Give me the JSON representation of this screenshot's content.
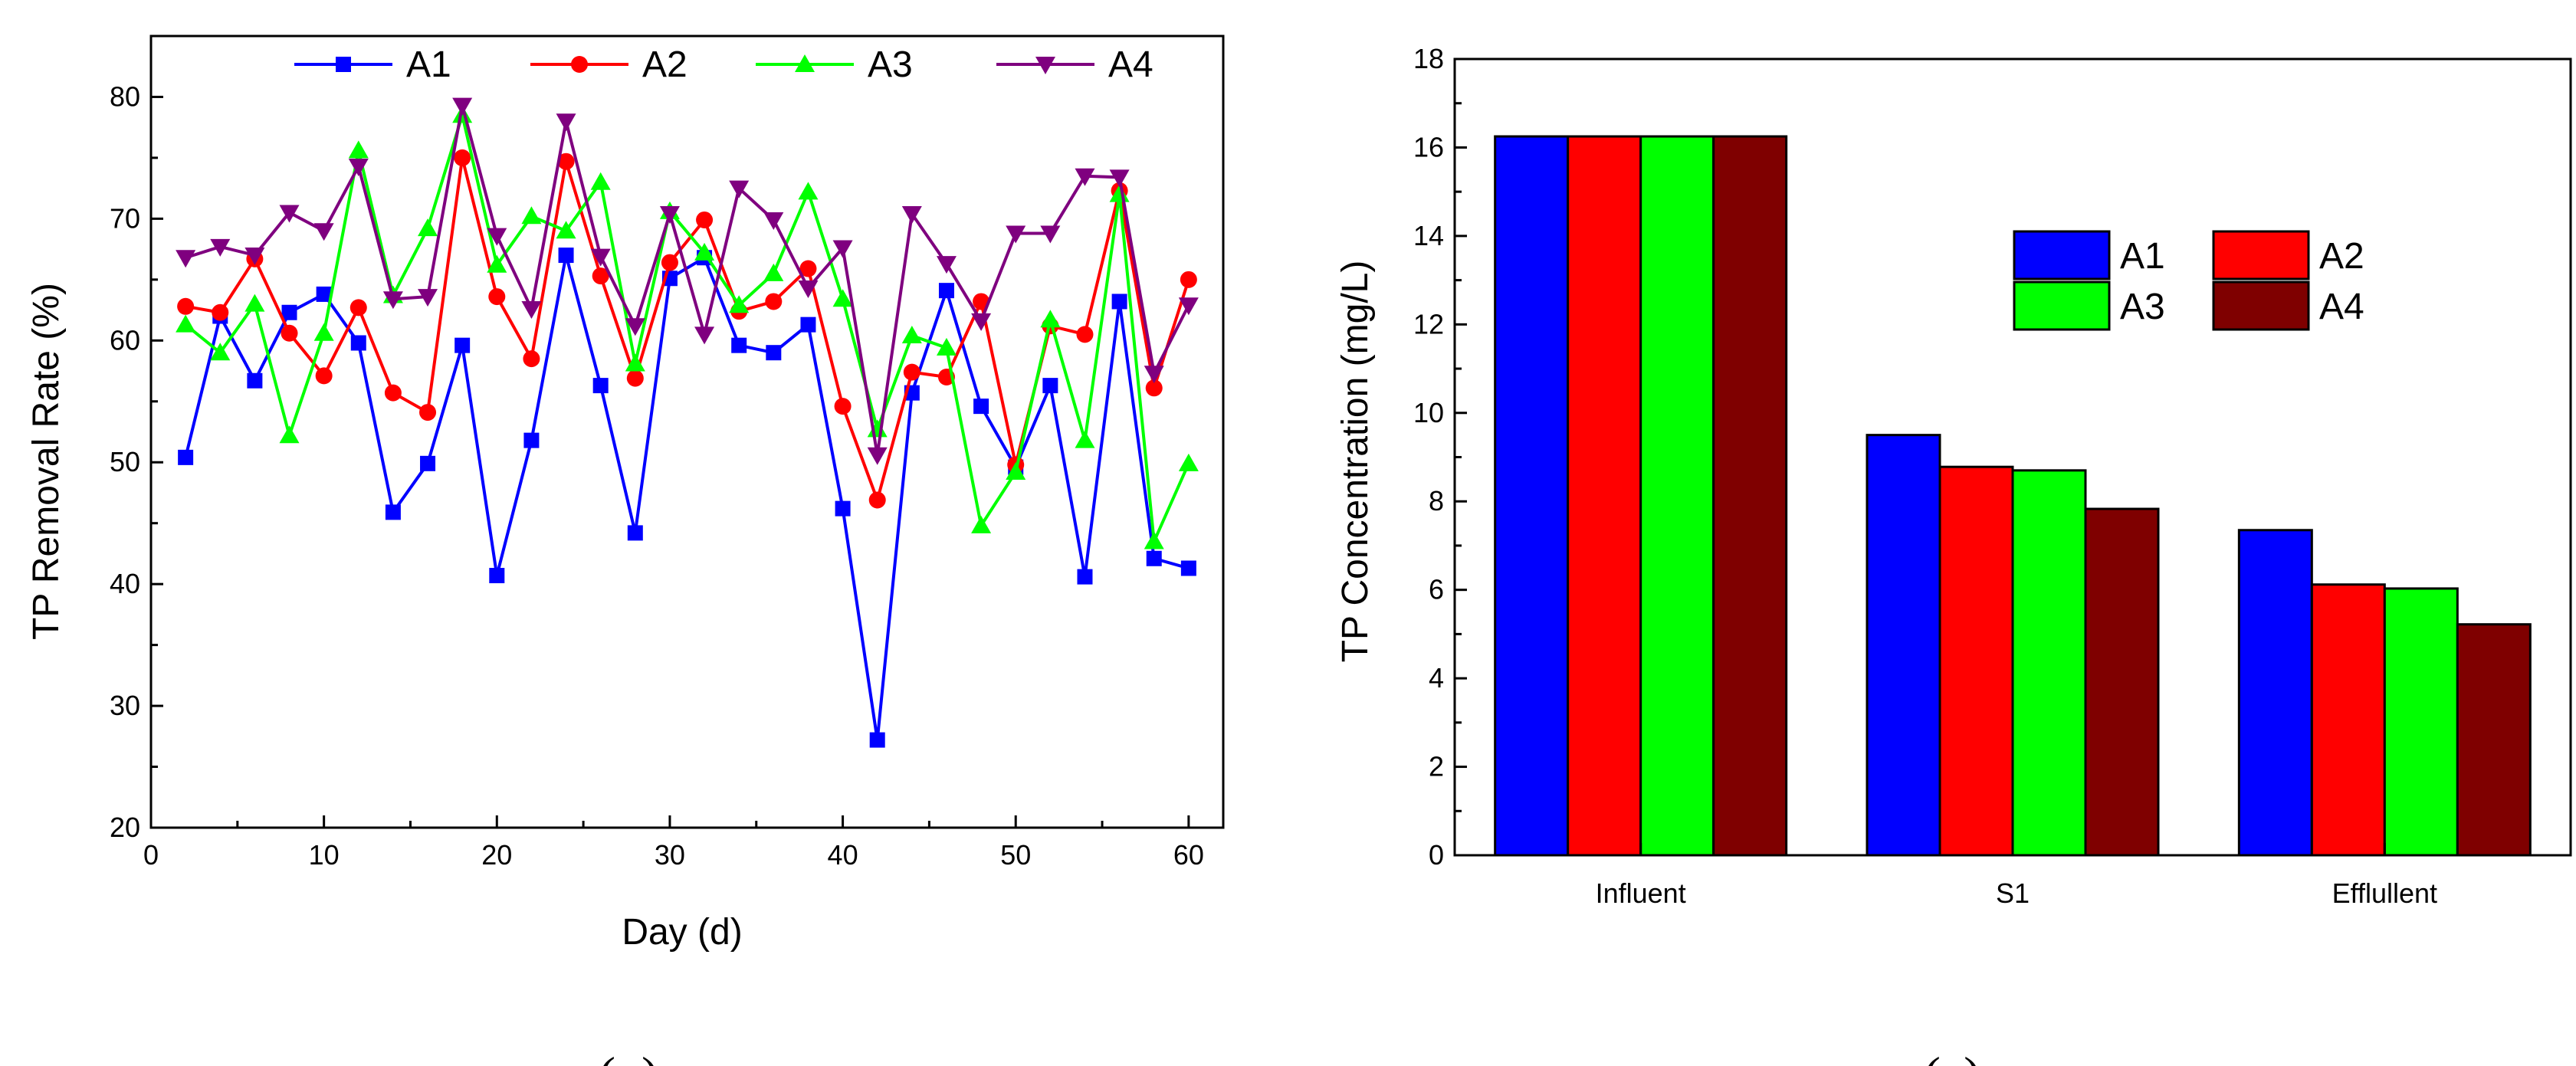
{
  "chart_data": [
    {
      "type": "line",
      "panel_label": {
        "open": "(",
        "letter": "a",
        "close": ")"
      },
      "xlabel": "Day (d)",
      "ylabel": "TP Removal Rate (%)",
      "xlim": [
        0,
        62
      ],
      "ylim": [
        20,
        85
      ],
      "xticks": [
        0,
        10,
        20,
        30,
        40,
        50,
        60
      ],
      "yticks": [
        20,
        30,
        40,
        50,
        60,
        70,
        80
      ],
      "x": [
        2,
        4,
        6,
        8,
        10,
        12,
        14,
        16,
        18,
        20,
        22,
        24,
        26,
        28,
        30,
        32,
        34,
        36,
        38,
        40,
        42,
        44,
        46,
        48,
        50,
        52,
        54,
        56,
        58,
        60
      ],
      "legend_position": "top-center",
      "series": [
        {
          "name": "A1",
          "color": "#0000ff",
          "marker": "square",
          "values": [
            50.4,
            62.0,
            56.7,
            62.3,
            63.8,
            59.8,
            45.9,
            49.9,
            59.6,
            40.7,
            51.8,
            67.0,
            56.3,
            44.2,
            65.1,
            66.8,
            59.6,
            59.0,
            61.3,
            46.2,
            27.2,
            55.7,
            64.1,
            54.6,
            49.6,
            56.3,
            40.6,
            63.2,
            42.1,
            41.3
          ]
        },
        {
          "name": "A2",
          "color": "#ff0000",
          "marker": "circle",
          "values": [
            62.8,
            62.3,
            66.7,
            60.6,
            57.1,
            62.7,
            55.7,
            54.1,
            75.0,
            63.6,
            58.5,
            74.7,
            65.3,
            56.9,
            66.4,
            69.9,
            62.4,
            63.2,
            65.9,
            54.6,
            46.9,
            57.4,
            57.0,
            63.2,
            49.8,
            61.2,
            60.5,
            72.3,
            56.1,
            65.0
          ]
        },
        {
          "name": "A3",
          "color": "#00ff00",
          "marker": "triangle-up",
          "values": [
            61.3,
            59.0,
            63.0,
            52.2,
            60.6,
            75.6,
            63.7,
            69.2,
            78.5,
            66.2,
            70.2,
            69.0,
            73.0,
            58.1,
            70.6,
            67.2,
            62.9,
            65.5,
            72.2,
            63.4,
            52.7,
            60.4,
            59.4,
            44.8,
            49.2,
            61.7,
            51.8,
            72.0,
            43.5,
            49.9
          ]
        },
        {
          "name": "A4",
          "color": "#7f007f",
          "marker": "triangle-down",
          "values": [
            66.8,
            67.7,
            67.0,
            70.5,
            69.0,
            74.3,
            63.4,
            63.6,
            79.3,
            68.6,
            62.6,
            78.0,
            66.9,
            61.2,
            70.4,
            60.5,
            72.5,
            69.9,
            64.3,
            67.6,
            50.6,
            70.4,
            66.3,
            61.6,
            68.8,
            68.8,
            73.5,
            73.4,
            57.3,
            62.9
          ]
        }
      ]
    },
    {
      "type": "bar",
      "panel_label": {
        "open": "(",
        "letter": "c",
        "close": ")"
      },
      "xlabel": "",
      "ylabel": "TP Concentration (mg/L)",
      "ylim": [
        0,
        18
      ],
      "yticks": [
        0,
        2,
        4,
        6,
        8,
        10,
        12,
        14,
        16,
        18
      ],
      "categories": [
        "Influent",
        "S1",
        "Efflullent"
      ],
      "legend_position": "top-right",
      "series": [
        {
          "name": "A1",
          "color": "#0000ff",
          "values": [
            16.25,
            9.5,
            7.35
          ]
        },
        {
          "name": "A2",
          "color": "#ff0000",
          "values": [
            16.25,
            8.78,
            6.12
          ]
        },
        {
          "name": "A3",
          "color": "#00ff00",
          "values": [
            16.25,
            8.7,
            6.03
          ]
        },
        {
          "name": "A4",
          "color": "#7f0000",
          "values": [
            16.25,
            7.83,
            5.22
          ]
        }
      ]
    }
  ]
}
